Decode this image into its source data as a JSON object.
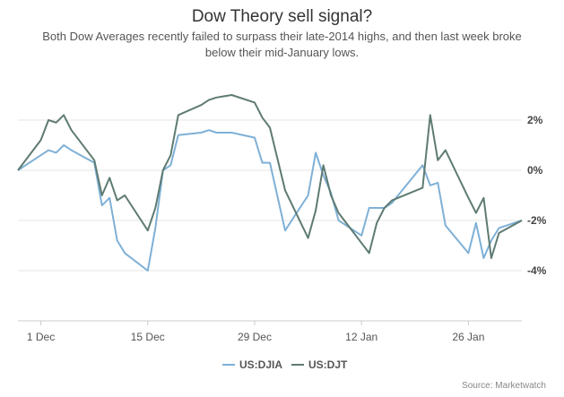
{
  "header": {
    "title": "Dow Theory sell signal?",
    "subtitle": "Both Dow Averages recently failed to surpass their late-2014 highs, and then last week broke below their mid-January lows."
  },
  "source": "Source: Marketwatch",
  "chart_data": {
    "type": "line",
    "title": "Dow Theory sell signal?",
    "subtitle": "Both Dow Averages recently failed to surpass their late-2014 highs, and then last week broke below their mid-January lows.",
    "x_tick_labels": [
      "1 Dec",
      "15 Dec",
      "29 Dec",
      "12 Jan",
      "26 Jan"
    ],
    "y_tick_labels": [
      "2%",
      "0%",
      "-2%",
      "-4%"
    ],
    "y_ticks": [
      2,
      0,
      -2,
      -4
    ],
    "ylim": [
      -6,
      3.5
    ],
    "grid": "horizontal",
    "legend_position": "bottom-center",
    "source": "Source: Marketwatch",
    "x_dates": [
      "2014-11-28",
      "2014-12-01",
      "2014-12-02",
      "2014-12-03",
      "2014-12-04",
      "2014-12-05",
      "2014-12-08",
      "2014-12-09",
      "2014-12-10",
      "2014-12-11",
      "2014-12-12",
      "2014-12-15",
      "2014-12-16",
      "2014-12-17",
      "2014-12-18",
      "2014-12-19",
      "2014-12-22",
      "2014-12-23",
      "2014-12-24",
      "2014-12-26",
      "2014-12-29",
      "2014-12-30",
      "2014-12-31",
      "2015-01-02",
      "2015-01-05",
      "2015-01-06",
      "2015-01-07",
      "2015-01-08",
      "2015-01-09",
      "2015-01-12",
      "2015-01-13",
      "2015-01-14",
      "2015-01-15",
      "2015-01-16",
      "2015-01-20",
      "2015-01-21",
      "2015-01-22",
      "2015-01-23",
      "2015-01-26",
      "2015-01-27",
      "2015-01-28",
      "2015-01-29",
      "2015-01-30",
      "2015-02-02"
    ],
    "series": [
      {
        "name": "US:DJIA",
        "color": "#7fb0d6",
        "values": [
          0.0,
          0.6,
          0.8,
          0.7,
          1.0,
          0.8,
          0.3,
          -1.4,
          -1.1,
          -2.8,
          -3.3,
          -4.0,
          -2.3,
          0.0,
          0.2,
          1.4,
          1.5,
          1.6,
          1.5,
          1.5,
          1.3,
          0.3,
          0.3,
          -2.4,
          -1.0,
          0.7,
          -0.2,
          -0.9,
          -2.0,
          -2.6,
          -1.5,
          -1.5,
          -1.5,
          -1.3,
          0.2,
          -0.6,
          -0.5,
          -2.2,
          -3.3,
          -2.1,
          -3.5,
          -2.8,
          -2.3,
          -2.0
        ]
      },
      {
        "name": "US:DJT",
        "color": "#5e7b72",
        "values": [
          0.0,
          1.2,
          2.0,
          1.9,
          2.2,
          1.6,
          0.4,
          -1.0,
          -0.3,
          -1.2,
          -1.0,
          -2.4,
          -1.5,
          0.0,
          0.6,
          2.2,
          2.6,
          2.8,
          2.9,
          3.0,
          2.7,
          2.1,
          1.7,
          -0.8,
          -2.7,
          -1.6,
          0.2,
          -1.0,
          -1.7,
          -2.9,
          -3.3,
          -2.1,
          -1.5,
          -1.2,
          -0.7,
          2.2,
          0.4,
          0.8,
          -1.1,
          -1.7,
          -1.1,
          -3.5,
          -2.5,
          -2.0
        ]
      }
    ]
  }
}
